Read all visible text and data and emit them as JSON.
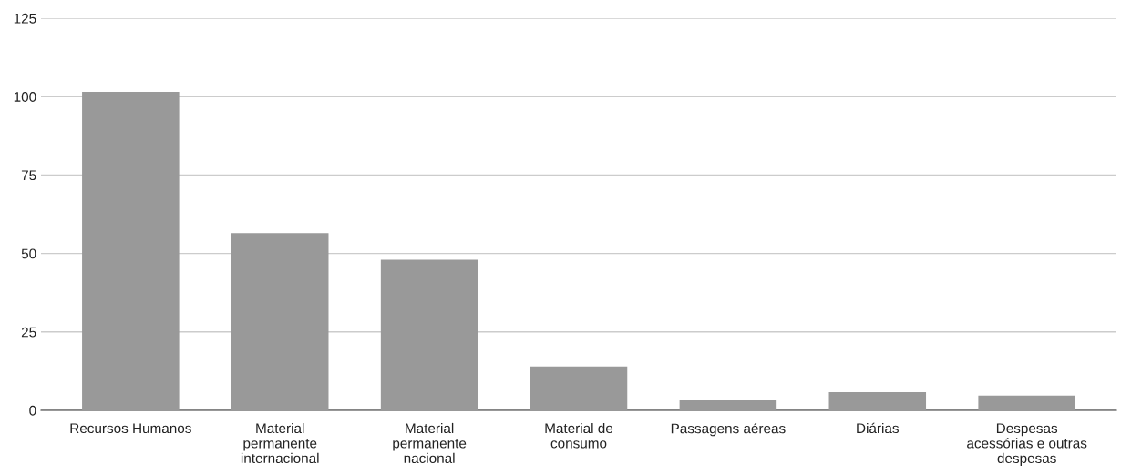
{
  "chart_data": {
    "type": "bar",
    "categories": [
      "Recursos Humanos",
      "Material\npermanente\ninternacional",
      "Material\npermanente\nnacional",
      "Material de\nconsumo",
      "Passagens aéreas",
      "Diárias",
      "Despesas\nacessórias e outras\ndespesas"
    ],
    "values": [
      101.5,
      56.5,
      48,
      14,
      3.2,
      5.8,
      4.7
    ],
    "color": "#999999",
    "ylim": [
      0,
      125
    ],
    "yticks": [
      0,
      25,
      50,
      75,
      100,
      125
    ],
    "grid": "y"
  }
}
